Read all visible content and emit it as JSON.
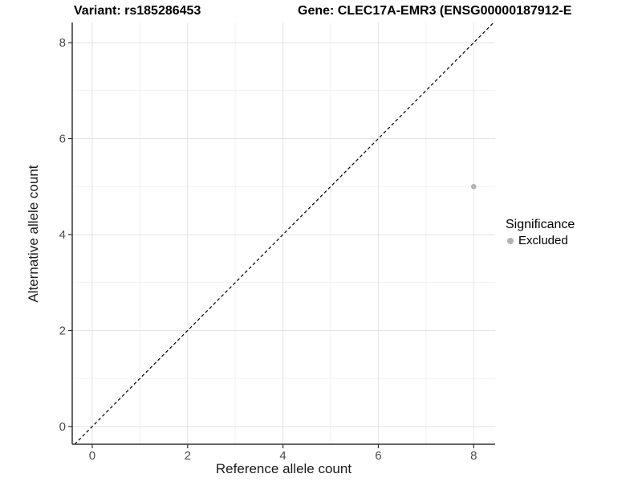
{
  "titles": {
    "left": "Variant: rs185286453",
    "right": "Gene: CLEC17A-EMR3 (ENSG00000187912-E"
  },
  "chart_data": {
    "type": "scatter",
    "xlabel": "Reference allele count",
    "ylabel": "Alternative allele count",
    "xlim": [
      -0.42,
      8.45
    ],
    "ylim": [
      -0.37,
      8.42
    ],
    "xticks": [
      0,
      2,
      4,
      6,
      8
    ],
    "yticks": [
      0,
      2,
      4,
      6,
      8
    ],
    "xminor": [
      1,
      3,
      5,
      7
    ],
    "yminor": [
      1,
      3,
      5,
      7
    ],
    "grid": true,
    "points": [
      {
        "x": 8,
        "y": 5,
        "series": "Excluded"
      }
    ],
    "abline": {
      "slope": 1,
      "intercept": 0,
      "style": "dashed"
    },
    "legend": {
      "title": "Significance",
      "position": "right",
      "items": [
        {
          "label": "Excluded",
          "color": "#b3b3b3"
        }
      ]
    },
    "colors": {
      "point": "#b3b3b3",
      "grid_major": "#e4e4e4",
      "grid_minor": "#f1f1f1",
      "axis_line": "#333333",
      "tick_mark": "#333333",
      "tick_label": "#4d4d4d",
      "abline": "#000000"
    }
  }
}
